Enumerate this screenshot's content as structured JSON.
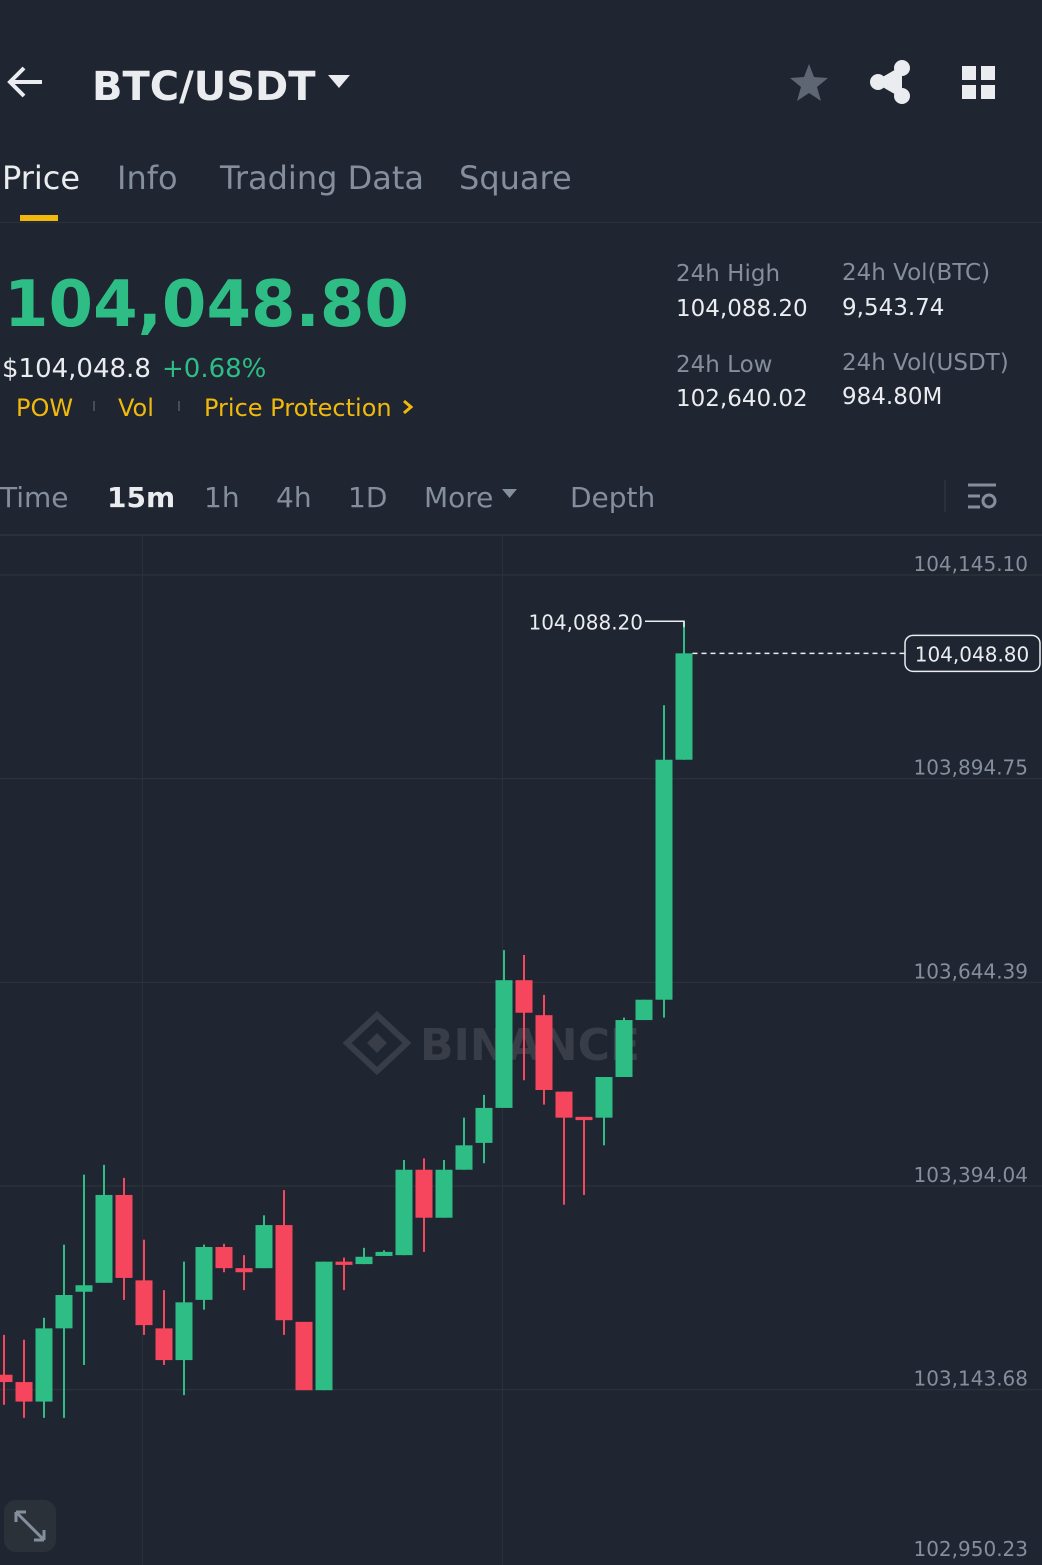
{
  "header": {
    "pair": "BTC/USDT"
  },
  "tabs": [
    "Price",
    "Info",
    "Trading Data",
    "Square"
  ],
  "ticker": {
    "price": "104,048.80",
    "usd": "$104,048.8",
    "change": "+0.68%",
    "tags": [
      "POW",
      "Vol",
      "Price Protection"
    ],
    "stats": [
      {
        "label": "24h High",
        "value": "104,088.20"
      },
      {
        "label": "24h Vol(BTC)",
        "value": "9,543.74"
      },
      {
        "label": "24h Low",
        "value": "102,640.02"
      },
      {
        "label": "24h Vol(USDT)",
        "value": "984.80M"
      }
    ]
  },
  "intervals": [
    "Time",
    "15m",
    "1h",
    "4h",
    "1D",
    "More",
    "Depth"
  ],
  "chart_data": {
    "type": "candlestick",
    "watermark": "BINANCE",
    "up_color": "#2ebd85",
    "down_color": "#f6465d",
    "open": [
      103162,
      103153,
      103129,
      103219,
      103264,
      103275,
      103383,
      103278,
      103219,
      103180,
      103254,
      103319,
      103293,
      103293,
      103346,
      103227,
      103143,
      103301,
      103298,
      103308,
      103309,
      103414,
      103355,
      103414,
      103447,
      103490,
      103647,
      103604,
      103510,
      103479,
      103478,
      103528,
      103598,
      103623,
      103918
    ],
    "high": [
      103211,
      103205,
      103232,
      103322,
      103408,
      103420,
      103404,
      103328,
      103266,
      103301,
      103322,
      103323,
      103309,
      103358,
      103389,
      103227,
      103301,
      103306,
      103318,
      103315,
      103426,
      103428,
      103426,
      103478,
      103506,
      103684,
      103678,
      103629,
      103510,
      103479,
      103528,
      103601,
      103623,
      103985,
      104088.2
    ],
    "low": [
      103125,
      103109,
      103109,
      103109,
      103174,
      103275,
      103254,
      103211,
      103174,
      103137,
      103242,
      103288,
      103266,
      103293,
      103211,
      103143,
      103143,
      103266,
      103298,
      103308,
      103309,
      103313,
      103355,
      103414,
      103422,
      103490,
      103524,
      103494,
      103371,
      103383,
      103444,
      103528,
      103598,
      103601,
      103918
    ],
    "close": [
      103153,
      103129,
      103219,
      103260,
      103272,
      103383,
      103281,
      103223,
      103180,
      103251,
      103319,
      103293,
      103288,
      103346,
      103229,
      103143,
      103301,
      103297,
      103307,
      103313,
      103414,
      103355,
      103414,
      103444,
      103490,
      103647,
      103607,
      103512,
      103478,
      103475,
      103528,
      103598,
      103623,
      103918,
      104048.8
    ],
    "ylim": [
      102950.23,
      104145.1
    ],
    "yticks": [
      {
        "value": 104145.1,
        "label": "104,145.10"
      },
      {
        "value": 103894.75,
        "label": "103,894.75"
      },
      {
        "value": 103644.39,
        "label": "103,644.39"
      },
      {
        "value": 103394.04,
        "label": "103,394.04"
      },
      {
        "value": 103143.68,
        "label": "103,143.68"
      },
      {
        "value": 102950.23,
        "label": "102,950.23"
      }
    ],
    "grid": true,
    "high_marker": {
      "value": 104088.2,
      "label": "104,088.20"
    },
    "last_price": {
      "value": 104048.8,
      "label": "104,048.80"
    }
  }
}
